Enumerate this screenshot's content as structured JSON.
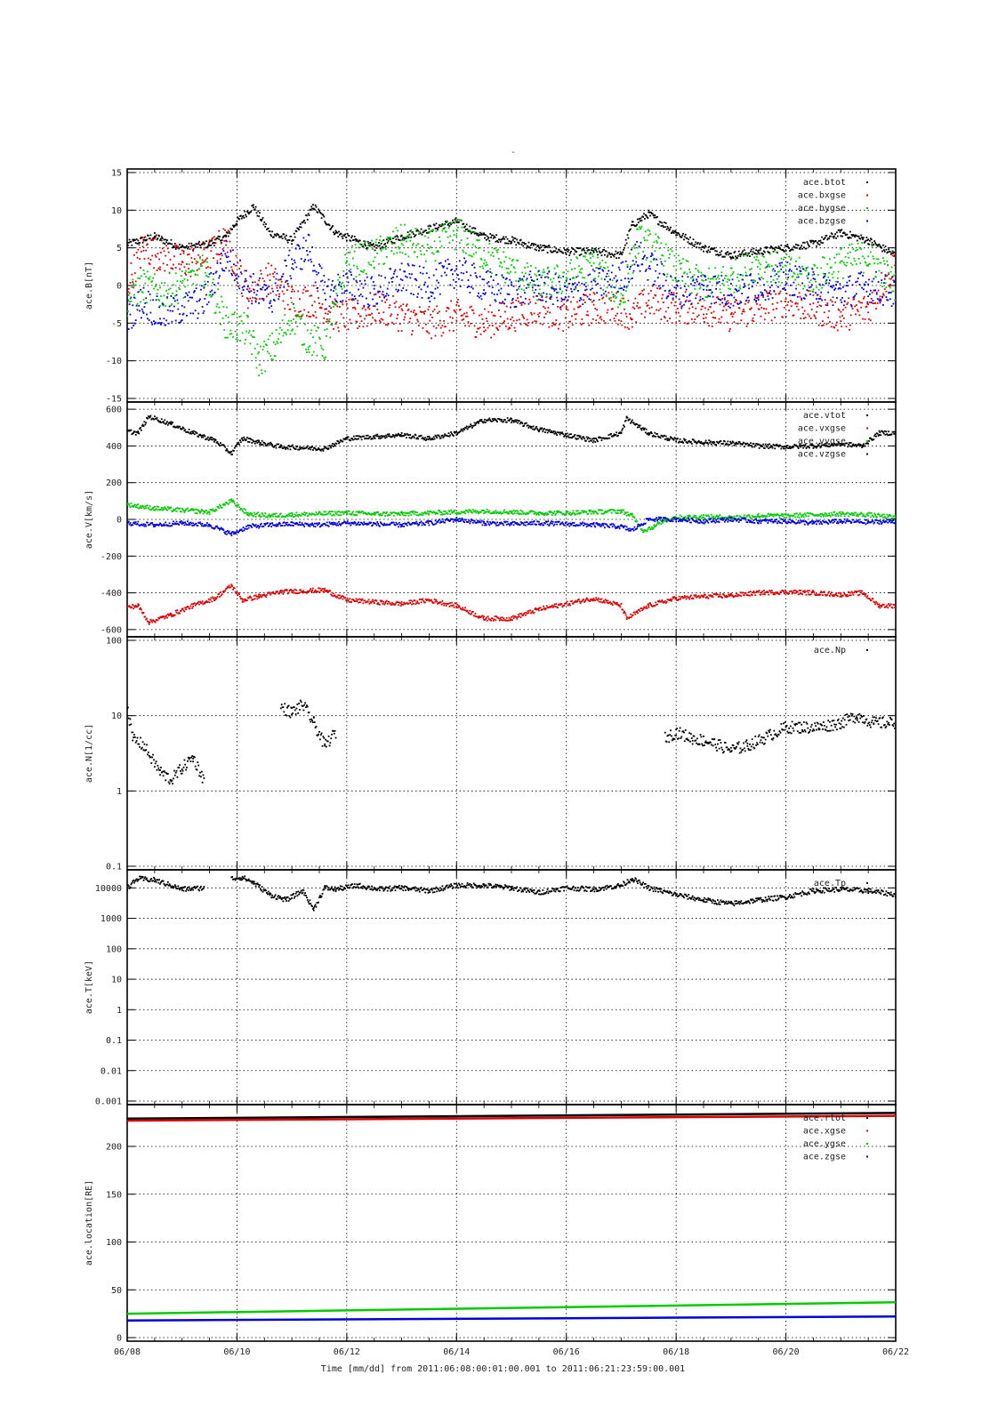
{
  "page_title": "-",
  "footer": {
    "text": "Time [mm/dd]  from 2011:06:08:00:01:00.001  to  2011:06:21:23:59:00.001"
  },
  "chart_data": [
    {
      "type": "scatter",
      "ylabel": "ace.B[nT]",
      "ylim": [
        -15,
        15
      ],
      "yticks": [
        -15,
        -10,
        -5,
        0,
        5,
        10,
        15
      ],
      "ytick_labels": [
        "-15",
        "-10",
        "-5",
        "0",
        "5",
        "10",
        "15"
      ],
      "grid": true,
      "legend_position": "top-right",
      "series": [
        {
          "name": "ace.btot",
          "color": "#000000",
          "x": [
            8.0,
            8.5,
            9.0,
            9.5,
            9.8,
            10.0,
            10.3,
            10.6,
            11.0,
            11.4,
            11.8,
            12.5,
            13.0,
            13.5,
            14.0,
            14.5,
            15.0,
            15.5,
            16.0,
            16.5,
            17.0,
            17.2,
            17.5,
            18.0,
            18.5,
            19.0,
            19.5,
            20.0,
            20.5,
            21.0,
            21.5,
            22.0
          ],
          "y": [
            5.5,
            6.5,
            5.0,
            5.5,
            6.5,
            8.5,
            10.5,
            7.0,
            6.0,
            10.5,
            7.0,
            5.0,
            6.5,
            7.5,
            8.5,
            6.5,
            6.0,
            5.0,
            4.5,
            4.5,
            4.0,
            8.0,
            9.5,
            7.0,
            5.0,
            4.0,
            4.5,
            5.0,
            5.5,
            7.0,
            6.0,
            4.0
          ]
        },
        {
          "name": "ace.bxgse",
          "color": "#dd0000",
          "x": [
            8.0,
            8.3,
            8.6,
            9.0,
            9.4,
            9.8,
            10.2,
            10.6,
            11.0,
            11.4,
            11.8,
            12.2,
            12.6,
            13.0,
            13.5,
            14.0,
            14.5,
            15.0,
            15.5,
            16.0,
            16.5,
            17.0,
            17.2,
            17.5,
            18.0,
            18.5,
            19.0,
            19.5,
            20.0,
            20.5,
            21.0,
            21.5,
            22.0
          ],
          "y": [
            0,
            5,
            4,
            3,
            3.5,
            6,
            -1,
            1,
            -2,
            -2,
            -4,
            -4,
            -3,
            -4,
            -5,
            -4,
            -5,
            -4,
            -3,
            -4,
            -3,
            -3,
            -4,
            -2,
            -3,
            -3,
            -4,
            -3,
            -2,
            -3,
            -4,
            -3,
            3
          ]
        },
        {
          "name": "ace.bygse",
          "color": "#00cc00",
          "x": [
            8.0,
            8.3,
            8.6,
            9.0,
            9.4,
            9.8,
            10.2,
            10.4,
            10.7,
            11.0,
            11.3,
            11.6,
            12.0,
            12.5,
            13.0,
            13.5,
            14.0,
            14.5,
            15.0,
            15.5,
            16.0,
            16.5,
            17.0,
            17.3,
            17.6,
            18.0,
            18.5,
            19.0,
            19.5,
            20.0,
            20.5,
            21.0,
            21.5,
            22.0
          ],
          "y": [
            -2,
            0,
            -1,
            0,
            2,
            -5,
            -6,
            -10,
            -8,
            -4,
            -7,
            -8,
            3,
            4,
            6,
            5,
            7,
            4,
            2,
            0,
            1,
            3,
            -2,
            6,
            5,
            2,
            0,
            1,
            3,
            2,
            1,
            3,
            4,
            0
          ]
        },
        {
          "name": "ace.bzgse",
          "color": "#0000dd",
          "x": [
            8.0,
            8.3,
            8.6,
            9.0,
            9.4,
            9.8,
            10.2,
            10.6,
            11.0,
            11.3,
            11.6,
            12.0,
            12.5,
            13.0,
            13.5,
            14.0,
            14.5,
            15.0,
            15.5,
            16.0,
            16.5,
            17.0,
            17.3,
            17.6,
            18.0,
            18.5,
            19.0,
            19.5,
            20.0,
            20.5,
            21.0,
            21.5,
            22.0
          ],
          "y": [
            -4,
            -2,
            -4,
            -3,
            -2,
            4,
            0,
            -2,
            3,
            5,
            -1,
            0,
            -1,
            1,
            0,
            2,
            0,
            -1,
            0,
            -1,
            0,
            1,
            4,
            2,
            -1,
            0,
            -1,
            0,
            1,
            0,
            -1,
            0,
            -1
          ]
        }
      ]
    },
    {
      "type": "scatter",
      "ylabel": "ace.V[km/s]",
      "ylim": [
        -620,
        620
      ],
      "yticks": [
        -600,
        -400,
        -200,
        0,
        200,
        400,
        600
      ],
      "ytick_labels": [
        "-600",
        "-400",
        "-200",
        "0",
        "200",
        "400",
        "600"
      ],
      "grid": true,
      "legend_position": "top-right",
      "series": [
        {
          "name": "ace.vtot",
          "color": "#000000",
          "x": [
            8.0,
            8.2,
            8.4,
            8.8,
            9.2,
            9.6,
            9.9,
            10.1,
            10.4,
            10.8,
            11.2,
            11.6,
            12.0,
            12.5,
            13.0,
            13.5,
            14.0,
            14.5,
            15.0,
            15.5,
            16.0,
            16.5,
            17.0,
            17.1,
            17.5,
            18.0,
            18.5,
            19.0,
            19.5,
            20.0,
            20.5,
            21.0,
            21.4,
            21.7,
            22.0
          ],
          "y": [
            480,
            470,
            560,
            520,
            470,
            430,
            360,
            440,
            420,
            395,
            390,
            385,
            440,
            450,
            460,
            440,
            470,
            540,
            540,
            490,
            460,
            430,
            470,
            550,
            470,
            430,
            420,
            415,
            400,
            395,
            400,
            410,
            400,
            470,
            470
          ]
        },
        {
          "name": "ace.vxgse",
          "color": "#dd0000",
          "x": [
            8.0,
            8.2,
            8.4,
            8.8,
            9.2,
            9.6,
            9.9,
            10.1,
            10.4,
            10.8,
            11.2,
            11.6,
            12.0,
            12.5,
            13.0,
            13.5,
            14.0,
            14.5,
            15.0,
            15.5,
            16.0,
            16.5,
            17.0,
            17.1,
            17.5,
            18.0,
            18.5,
            19.0,
            19.5,
            20.0,
            20.5,
            21.0,
            21.4,
            21.7,
            22.0
          ],
          "y": [
            -480,
            -470,
            -560,
            -520,
            -470,
            -430,
            -360,
            -440,
            -420,
            -395,
            -390,
            -385,
            -440,
            -450,
            -460,
            -440,
            -470,
            -540,
            -540,
            -490,
            -460,
            -430,
            -470,
            -540,
            -470,
            -430,
            -420,
            -415,
            -400,
            -395,
            -400,
            -410,
            -400,
            -470,
            -470
          ]
        },
        {
          "name": "ace.vygse",
          "color": "#00cc00",
          "x": [
            8.0,
            8.5,
            9.0,
            9.5,
            9.9,
            10.2,
            10.6,
            11.0,
            11.5,
            12.0,
            12.5,
            13.0,
            13.5,
            14.0,
            14.5,
            15.0,
            15.5,
            16.0,
            16.5,
            17.0,
            17.2,
            17.4,
            17.6,
            17.8,
            18.0,
            18.5,
            19.0,
            19.5,
            20.0,
            20.5,
            21.0,
            21.5,
            22.0
          ],
          "y": [
            80,
            60,
            50,
            40,
            100,
            30,
            20,
            25,
            30,
            35,
            30,
            30,
            35,
            40,
            45,
            40,
            35,
            35,
            40,
            45,
            20,
            -60,
            -40,
            0,
            10,
            15,
            10,
            20,
            20,
            25,
            30,
            25,
            10
          ]
        },
        {
          "name": "ace.vzgse",
          "color": "#0000dd",
          "x": [
            8.0,
            8.5,
            9.0,
            9.5,
            9.9,
            10.2,
            10.6,
            11.0,
            11.5,
            12.0,
            12.5,
            13.0,
            13.5,
            14.0,
            14.5,
            15.0,
            15.5,
            16.0,
            16.5,
            17.0,
            17.2,
            17.5,
            18.0,
            18.5,
            19.0,
            19.5,
            20.0,
            20.5,
            21.0,
            21.5,
            22.0
          ],
          "y": [
            -20,
            -30,
            -20,
            -30,
            -80,
            -40,
            -30,
            -25,
            -30,
            -20,
            -25,
            -30,
            -20,
            0,
            -20,
            -25,
            -20,
            -25,
            -30,
            -40,
            -60,
            0,
            0,
            -10,
            0,
            -10,
            -10,
            -20,
            -10,
            -15,
            -10
          ]
        }
      ]
    },
    {
      "type": "scatter",
      "ylabel": "ace.N[1/cc]",
      "yscale": "log",
      "ylim": [
        0.1,
        100
      ],
      "yticks": [
        0.1,
        1,
        10,
        100
      ],
      "ytick_labels": [
        "0.1",
        "1",
        "10",
        "100"
      ],
      "grid": true,
      "legend_position": "top-right",
      "series": [
        {
          "name": "ace.Np",
          "color": "#000000",
          "x": [
            8.0,
            8.1,
            8.3,
            8.6,
            8.8,
            9.0,
            9.2,
            9.4,
            null,
            10.8,
            11.0,
            11.2,
            11.4,
            11.6,
            11.8,
            null,
            17.8,
            18.0,
            18.3,
            18.6,
            19.0,
            19.3,
            19.6,
            20.0,
            20.3,
            20.6,
            21.0,
            21.3,
            21.6,
            22.0
          ],
          "y": [
            14,
            5,
            4,
            1.8,
            1.4,
            2.0,
            2.8,
            1.4,
            null,
            13,
            11,
            14,
            8,
            4,
            6,
            null,
            5,
            6,
            5,
            4.5,
            3.5,
            4.0,
            5,
            7,
            7,
            7,
            8,
            10,
            8,
            8
          ]
        }
      ]
    },
    {
      "type": "scatter",
      "ylabel": "ace.T[keV]",
      "yscale": "log",
      "ylim": [
        0.001,
        30000
      ],
      "yticks": [
        0.001,
        0.01,
        0.1,
        1,
        10,
        100,
        1000,
        10000
      ],
      "ytick_labels": [
        "0.001",
        "0.01",
        "0.1",
        "1",
        "10",
        "100",
        "1000",
        "10000"
      ],
      "grid": true,
      "legend_position": "top-right",
      "series": [
        {
          "name": "ace.Tp",
          "color": "#000000",
          "x": [
            8.0,
            8.2,
            8.5,
            8.8,
            9.0,
            9.4,
            null,
            9.9,
            10.1,
            10.3,
            10.6,
            10.9,
            11.2,
            11.4,
            11.6,
            11.8,
            12.2,
            12.6,
            13.0,
            13.5,
            14.0,
            14.5,
            15.0,
            15.5,
            16.0,
            16.5,
            17.0,
            17.2,
            17.5,
            18.0,
            18.5,
            19.0,
            19.5,
            20.0,
            20.5,
            21.0,
            21.5,
            22.0
          ],
          "y": [
            10000,
            20000,
            18000,
            12000,
            9000,
            10000,
            null,
            20000,
            22000,
            15000,
            6000,
            4000,
            8000,
            2000,
            10000,
            9000,
            12000,
            9000,
            10000,
            8000,
            12000,
            12000,
            10000,
            7000,
            10000,
            9000,
            12000,
            20000,
            10000,
            6000,
            4000,
            3000,
            4000,
            5000,
            8000,
            9000,
            8000,
            6000
          ]
        }
      ]
    },
    {
      "type": "line",
      "ylabel": "ace.location[RE]",
      "ylim": [
        0,
        240
      ],
      "yticks": [
        0,
        50,
        100,
        150,
        200
      ],
      "ytick_labels": [
        "0",
        "50",
        "100",
        "150",
        "200"
      ],
      "xlim": [
        8,
        22
      ],
      "xticks": [
        8,
        10,
        12,
        14,
        16,
        18,
        20,
        22
      ],
      "xtick_labels": [
        "06/08",
        "06/10",
        "06/12",
        "06/14",
        "06/16",
        "06/18",
        "06/20",
        "06/22"
      ],
      "grid": true,
      "legend_position": "top-right",
      "series": [
        {
          "name": "ace.rtot",
          "color": "#000000",
          "x": [
            8,
            22
          ],
          "y": [
            229,
            235
          ]
        },
        {
          "name": "ace.xgse",
          "color": "#dd0000",
          "x": [
            8,
            22
          ],
          "y": [
            227,
            232
          ]
        },
        {
          "name": "ace.ygse",
          "color": "#00cc00",
          "x": [
            8,
            22
          ],
          "y": [
            25,
            37
          ]
        },
        {
          "name": "ace.zgse",
          "color": "#0000dd",
          "x": [
            8,
            22
          ],
          "y": [
            18,
            22
          ]
        }
      ]
    }
  ]
}
